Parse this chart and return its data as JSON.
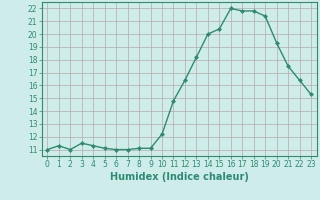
{
  "x": [
    0,
    1,
    2,
    3,
    4,
    5,
    6,
    7,
    8,
    9,
    10,
    11,
    12,
    13,
    14,
    15,
    16,
    17,
    18,
    19,
    20,
    21,
    22,
    23
  ],
  "y": [
    11.0,
    11.3,
    11.0,
    11.5,
    11.3,
    11.1,
    11.0,
    11.0,
    11.1,
    11.1,
    12.2,
    14.8,
    16.4,
    18.2,
    20.0,
    20.4,
    22.0,
    21.8,
    21.8,
    21.4,
    19.3,
    17.5,
    16.4,
    15.3
  ],
  "xlabel": "Humidex (Indice chaleur)",
  "xlim": [
    -0.5,
    23.5
  ],
  "ylim": [
    10.5,
    22.5
  ],
  "yticks": [
    11,
    12,
    13,
    14,
    15,
    16,
    17,
    18,
    19,
    20,
    21,
    22
  ],
  "xticks": [
    0,
    1,
    2,
    3,
    4,
    5,
    6,
    7,
    8,
    9,
    10,
    11,
    12,
    13,
    14,
    15,
    16,
    17,
    18,
    19,
    20,
    21,
    22,
    23
  ],
  "line_color": "#2e8b72",
  "marker": "D",
  "marker_size": 2.0,
  "line_width": 1.0,
  "bg_color": "#ceecea",
  "grid_color": "#b8a8a8",
  "tick_fontsize": 5.5,
  "xlabel_fontsize": 7.0
}
